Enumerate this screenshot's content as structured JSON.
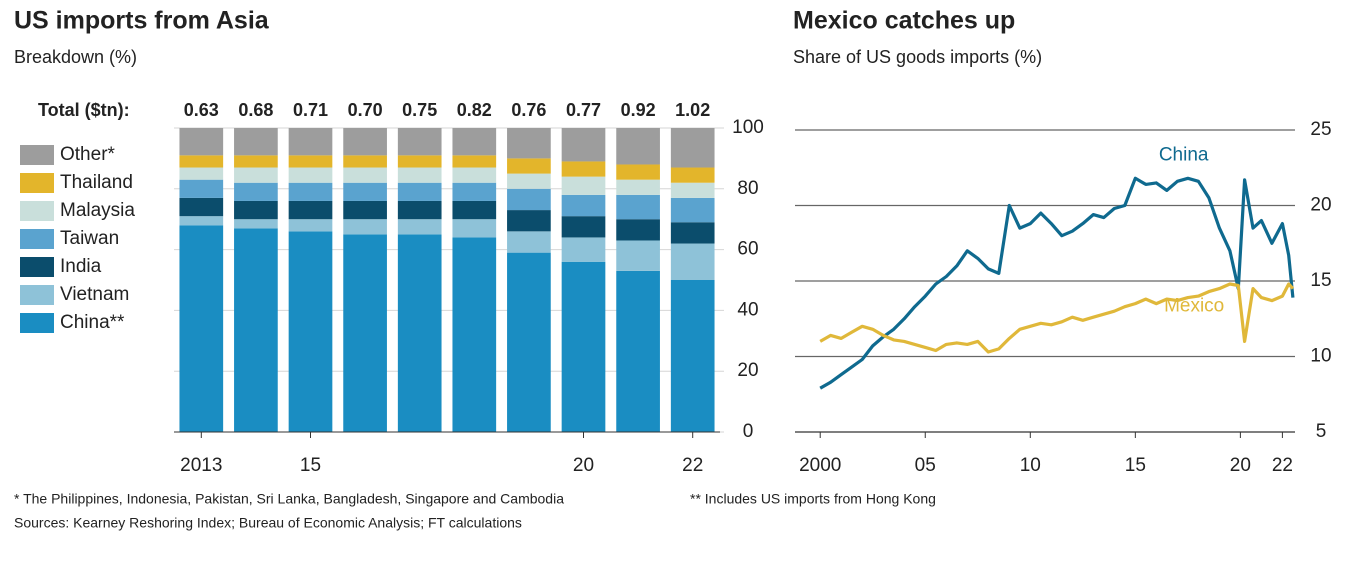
{
  "chart_data": [
    {
      "type": "stacked_bar",
      "title": "US imports from Asia",
      "subtitle": "Breakdown  (%)",
      "categories": [
        "2013",
        null,
        "15",
        null,
        null,
        null,
        null,
        "20",
        null,
        "22"
      ],
      "totals": {
        "label": "Total ($tn):",
        "values": [
          0.63,
          0.68,
          0.71,
          0.7,
          0.75,
          0.82,
          0.76,
          0.77,
          0.92,
          1.02
        ],
        "value_labels": [
          "0.63",
          "0.68",
          "0.71",
          "0.70",
          "0.75",
          "0.82",
          "0.76",
          "0.77",
          "0.92",
          "1.02"
        ]
      },
      "series": [
        {
          "name": "China**",
          "color": "#1a8dc2",
          "values": [
            68,
            67,
            66,
            65,
            65,
            64,
            59,
            56,
            53,
            50
          ]
        },
        {
          "name": "Vietnam",
          "color": "#8ec2d8",
          "values": [
            3,
            3,
            4,
            5,
            5,
            6,
            7,
            8,
            10,
            12
          ]
        },
        {
          "name": "India",
          "color": "#0b4d6c",
          "values": [
            6,
            6,
            6,
            6,
            6,
            6,
            7,
            7,
            7,
            7
          ]
        },
        {
          "name": "Taiwan",
          "color": "#5aa3cf",
          "values": [
            6,
            6,
            6,
            6,
            6,
            6,
            7,
            7,
            8,
            8
          ]
        },
        {
          "name": "Malaysia",
          "color": "#c9dfdb",
          "values": [
            4,
            5,
            5,
            5,
            5,
            5,
            5,
            6,
            5,
            5
          ]
        },
        {
          "name": "Thailand",
          "color": "#e3b52b",
          "values": [
            4,
            4,
            4,
            4,
            4,
            4,
            5,
            5,
            5,
            5
          ]
        },
        {
          "name": "Other*",
          "color": "#9d9d9d",
          "values": [
            9,
            9,
            9,
            9,
            9,
            9,
            10,
            11,
            12,
            13
          ]
        }
      ],
      "ylim": [
        0,
        100
      ],
      "yticks": [
        0,
        20,
        40,
        60,
        80,
        100
      ]
    },
    {
      "type": "line",
      "title": "Mexico catches up",
      "subtitle": "Share of US goods imports (%)",
      "x": [
        2000,
        2000.5,
        2001,
        2001.5,
        2002,
        2002.5,
        2003,
        2003.5,
        2004,
        2004.5,
        2005,
        2005.5,
        2006,
        2006.5,
        2007,
        2007.5,
        2008,
        2008.5,
        2009,
        2009.5,
        2010,
        2010.5,
        2011,
        2011.5,
        2012,
        2012.5,
        2013,
        2013.5,
        2014,
        2014.5,
        2015,
        2015.5,
        2016,
        2016.5,
        2017,
        2017.5,
        2018,
        2018.5,
        2019,
        2019.5,
        2019.9,
        2020.2,
        2020.6,
        2021,
        2021.5,
        2022,
        2022.3,
        2022.5
      ],
      "series": [
        {
          "name": "China",
          "color": "#0f6a8f",
          "values": [
            7.9,
            8.3,
            8.8,
            9.3,
            9.8,
            10.7,
            11.3,
            11.8,
            12.5,
            13.3,
            14.0,
            14.8,
            15.3,
            16.0,
            17.0,
            16.5,
            15.8,
            15.5,
            20.0,
            18.5,
            18.8,
            19.5,
            18.8,
            18.0,
            18.3,
            18.8,
            19.4,
            19.2,
            19.8,
            20.0,
            21.8,
            21.4,
            21.5,
            21.0,
            21.6,
            21.8,
            21.6,
            20.5,
            18.5,
            17.0,
            14.5,
            21.7,
            18.5,
            19.0,
            17.5,
            18.8,
            16.7,
            13.9
          ]
        },
        {
          "name": "Mexico",
          "color": "#e0b83a",
          "values": [
            11.0,
            11.4,
            11.2,
            11.6,
            12.0,
            11.8,
            11.4,
            11.1,
            11.0,
            10.8,
            10.6,
            10.4,
            10.8,
            10.9,
            10.8,
            11.0,
            10.3,
            10.5,
            11.2,
            11.8,
            12.0,
            12.2,
            12.1,
            12.3,
            12.6,
            12.4,
            12.6,
            12.8,
            13.0,
            13.3,
            13.5,
            13.8,
            13.5,
            13.8,
            13.7,
            13.9,
            14.0,
            14.3,
            14.5,
            14.8,
            14.7,
            11.0,
            14.5,
            13.9,
            13.7,
            14.0,
            14.8,
            14.5
          ]
        }
      ],
      "xlim": [
        1998.8,
        2022.6
      ],
      "xticks": [
        2000,
        {
          "value": 2005,
          "label": "05"
        },
        {
          "value": 2010,
          "label": "10"
        },
        {
          "value": 2015,
          "label": "15"
        },
        {
          "value": 2020,
          "label": "20"
        },
        {
          "value": 2022,
          "label": "22"
        }
      ],
      "ylim": [
        5,
        25
      ],
      "yticks": [
        5,
        10,
        15,
        20,
        25
      ],
      "grid": true
    }
  ],
  "notes": [
    "* The Philippines, Indonesia, Pakistan, Sri Lanka, Bangladesh, Singapore and Cambodia",
    "** Includes US imports from Hong Kong",
    "Sources: Kearney Reshoring Index; Bureau of Economic Analysis; FT calculations"
  ]
}
